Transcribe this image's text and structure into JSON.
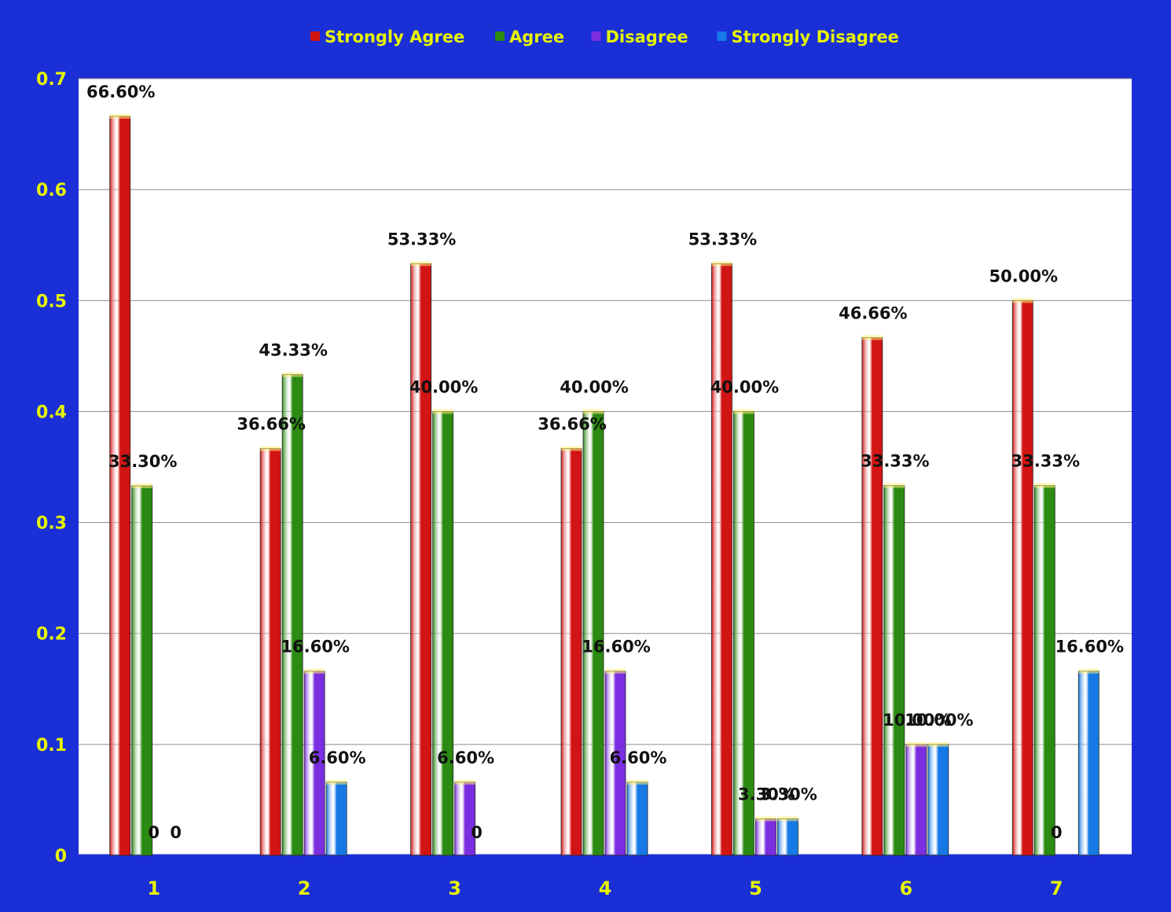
{
  "chart_data": {
    "type": "bar",
    "title": "",
    "xlabel": "",
    "ylabel": "",
    "ylim": [
      0,
      0.7
    ],
    "yticks": [
      "0",
      "0.1",
      "0.2",
      "0.3",
      "0.4",
      "0.5",
      "0.6",
      "0.7"
    ],
    "grid": true,
    "legend_position": "top",
    "categories": [
      "1",
      "2",
      "3",
      "4",
      "5",
      "6",
      "7"
    ],
    "series": [
      {
        "name": "Strongly Agree",
        "color": "#d11414",
        "values": [
          0.666,
          0.3666,
          0.5333,
          0.3666,
          0.5333,
          0.4666,
          0.5
        ],
        "labels": [
          "66.60%",
          "36.66%",
          "53.33%",
          "36.66%",
          "53.33%",
          "46.66%",
          "50.00%"
        ]
      },
      {
        "name": "Agree",
        "color": "#2b8a12",
        "values": [
          0.333,
          0.4333,
          0.4,
          0.4,
          0.4,
          0.3333,
          0.3333
        ],
        "labels": [
          "33.30%",
          "43.33%",
          "40.00%",
          "40.00%",
          "40.00%",
          "33.33%",
          "33.33%"
        ]
      },
      {
        "name": "Disagree",
        "color": "#7a2ee0",
        "values": [
          0,
          0.166,
          0.066,
          0.166,
          0.033,
          0.1,
          0
        ],
        "labels": [
          "0",
          "16.60%",
          "6.60%",
          "16.60%",
          "3.30%",
          "10.00%",
          "0"
        ]
      },
      {
        "name": "Strongly Disagree",
        "color": "#1679e6",
        "values": [
          0,
          0.066,
          0,
          0.066,
          0.033,
          0.1,
          0.166
        ],
        "labels": [
          "0",
          "6.60%",
          "0",
          "6.60%",
          "3.30%",
          "10.00%",
          "16.60%"
        ]
      }
    ]
  }
}
